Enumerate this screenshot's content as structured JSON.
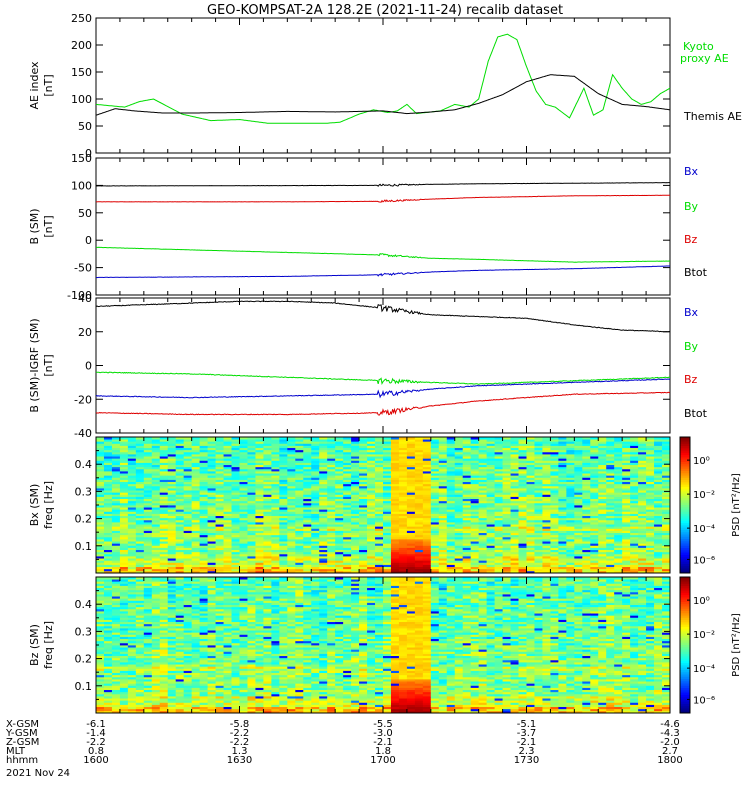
{
  "title": "GEO-KOMPSAT-2A 128.2E (2021-11-24) recalib dataset",
  "colors": {
    "black": "#000000",
    "green": "#00dd00",
    "red": "#dd0000",
    "blue": "#0000cc"
  },
  "chart_data": [
    {
      "type": "line",
      "ylabel": [
        "AE index",
        "[nT]"
      ],
      "ylim": [
        0,
        250
      ],
      "yticks": [
        0,
        50,
        100,
        150,
        200,
        250
      ],
      "xlim": [
        0,
        120
      ],
      "series": [
        {
          "name": "Themis AE",
          "color": "#000000",
          "x": [
            0,
            4,
            8,
            14,
            20,
            30,
            40,
            50,
            60,
            65,
            70,
            75,
            80,
            85,
            90,
            95,
            100,
            105,
            110,
            115,
            120
          ],
          "y": [
            70,
            82,
            78,
            74,
            74,
            75,
            77,
            76,
            78,
            73,
            76,
            80,
            92,
            108,
            132,
            145,
            142,
            110,
            90,
            86,
            80
          ]
        },
        {
          "name": "Kyoto proxy AE",
          "color": "#00dd00",
          "x": [
            0,
            6,
            9,
            12,
            18,
            24,
            30,
            36,
            40,
            44,
            48,
            51,
            55,
            58,
            61,
            63,
            65,
            67,
            69,
            72,
            75,
            78,
            80,
            82,
            84,
            86,
            88,
            90,
            92,
            94,
            96,
            99,
            102,
            104,
            106,
            108,
            110,
            112,
            114,
            116,
            118,
            120
          ],
          "y": [
            90,
            85,
            95,
            100,
            72,
            60,
            62,
            55,
            55,
            55,
            55,
            57,
            72,
            80,
            75,
            78,
            90,
            73,
            75,
            78,
            90,
            85,
            100,
            170,
            215,
            220,
            210,
            160,
            115,
            90,
            85,
            65,
            120,
            70,
            80,
            145,
            120,
            100,
            90,
            95,
            110,
            120
          ]
        }
      ]
    },
    {
      "type": "line",
      "ylabel": [
        "B (SM)",
        "[nT]"
      ],
      "ylim": [
        -100,
        150
      ],
      "yticks": [
        -100,
        -50,
        0,
        50,
        100,
        150
      ],
      "xlim": [
        0,
        120
      ],
      "series": [
        {
          "name": "Bx",
          "color": "#000000",
          "x": [
            0,
            60,
            70,
            80,
            120
          ],
          "y": [
            99,
            100,
            102,
            103,
            105
          ]
        },
        {
          "name": "By",
          "color": "#00dd00",
          "x": [
            0,
            30,
            60,
            70,
            80,
            100,
            120
          ],
          "y": [
            -13,
            -20,
            -27,
            -33,
            -35,
            -40,
            -38
          ]
        },
        {
          "name": "Bz",
          "color": "#dd0000",
          "x": [
            0,
            40,
            60,
            70,
            80,
            100,
            120
          ],
          "y": [
            70,
            70,
            71,
            75,
            78,
            81,
            82
          ]
        },
        {
          "name": "Btot",
          "color": "#0000cc",
          "x": [
            0,
            40,
            60,
            70,
            80,
            100,
            120
          ],
          "y": [
            -68,
            -66,
            -63,
            -58,
            -55,
            -52,
            -47
          ]
        }
      ]
    },
    {
      "type": "line",
      "ylabel": [
        "B (SM)-IGRF (SM)",
        "[nT]"
      ],
      "ylim": [
        -40,
        40
      ],
      "yticks": [
        -40,
        -20,
        0,
        20,
        40
      ],
      "xlim": [
        0,
        120
      ],
      "series": [
        {
          "name": "Bx",
          "color": "#000000",
          "x": [
            0,
            10,
            20,
            30,
            40,
            50,
            60,
            70,
            80,
            90,
            100,
            110,
            120
          ],
          "y": [
            35,
            36,
            37,
            38,
            38,
            37,
            34,
            30,
            29,
            28,
            24,
            21,
            20
          ]
        },
        {
          "name": "By",
          "color": "#00dd00",
          "x": [
            0,
            20,
            40,
            60,
            70,
            80,
            100,
            120
          ],
          "y": [
            -4,
            -5,
            -7,
            -9,
            -10,
            -11,
            -9,
            -7
          ]
        },
        {
          "name": "Bz",
          "color": "#dd0000",
          "x": [
            0,
            20,
            40,
            60,
            70,
            80,
            100,
            120
          ],
          "y": [
            -28,
            -29,
            -29,
            -28,
            -24,
            -21,
            -17,
            -16
          ]
        },
        {
          "name": "Btot",
          "color": "#0000cc",
          "x": [
            0,
            20,
            40,
            60,
            70,
            80,
            100,
            120
          ],
          "y": [
            -18,
            -19,
            -18,
            -17,
            -14,
            -12,
            -10,
            -8
          ]
        }
      ]
    },
    {
      "type": "heatmap",
      "ylabel": [
        "Bx (SM)",
        "freq [Hz]"
      ],
      "ylim": [
        0,
        0.5
      ],
      "yticks": [
        0.1,
        0.2,
        0.3,
        0.4
      ],
      "colorbar": {
        "label": "PSD [nT²/Hz]",
        "ticks": [
          "10⁰",
          "10⁻²",
          "10⁻⁴",
          "10⁻⁶"
        ]
      }
    },
    {
      "type": "heatmap",
      "ylabel": [
        "Bz (SM)",
        "freq [Hz]"
      ],
      "ylim": [
        0,
        0.5
      ],
      "yticks": [
        0.1,
        0.2,
        0.3,
        0.4
      ],
      "colorbar": {
        "label": "PSD [nT²/Hz]",
        "ticks": [
          "10⁰",
          "10⁻²",
          "10⁻⁴",
          "10⁻⁶"
        ]
      }
    }
  ],
  "ephemeris": {
    "rows": [
      {
        "label": "X-GSM",
        "values": [
          "-6.1",
          "-5.8",
          "-5.5",
          "-5.1",
          "-4.6"
        ]
      },
      {
        "label": "Y-GSM",
        "values": [
          "-1.4",
          "-2.2",
          "-3.0",
          "-3.7",
          "-4.3"
        ]
      },
      {
        "label": "Z-GSM",
        "values": [
          "-2.2",
          "-2.2",
          "-2.1",
          "-2.1",
          "-2.0"
        ]
      },
      {
        "label": "MLT",
        "values": [
          "0.8",
          "1.3",
          "1.8",
          "2.3",
          "2.7"
        ]
      },
      {
        "label": "hhmm",
        "values": [
          "1600",
          "1630",
          "1700",
          "1730",
          "1800"
        ]
      }
    ],
    "date": "2021 Nov 24"
  }
}
